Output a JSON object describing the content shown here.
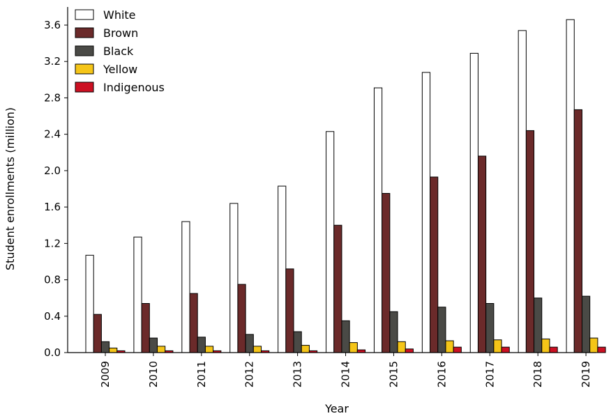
{
  "chart_data": {
    "type": "bar",
    "title": "",
    "xlabel": "Year",
    "ylabel": "Student enrollments (million)",
    "ylim": [
      0,
      3.8
    ],
    "yticks": [
      "0.0",
      "0.4",
      "0.8",
      "1.2",
      "1.6",
      "2.0",
      "2.4",
      "2.8",
      "3.2",
      "3.6"
    ],
    "categories": [
      "2009",
      "2010",
      "2011",
      "2012",
      "2013",
      "2014",
      "2015",
      "2016",
      "2017",
      "2018",
      "2019"
    ],
    "grid": false,
    "legend_position": "top-left",
    "series": [
      {
        "name": "White",
        "color": "#ffffff",
        "values": [
          1.07,
          1.27,
          1.44,
          1.64,
          1.83,
          2.43,
          2.91,
          3.08,
          3.29,
          3.54,
          3.66
        ]
      },
      {
        "name": "Brown",
        "color": "#6b2a2a",
        "values": [
          0.42,
          0.54,
          0.65,
          0.75,
          0.92,
          1.4,
          1.75,
          1.93,
          2.16,
          2.44,
          2.67
        ]
      },
      {
        "name": "Black",
        "color": "#4a4a46",
        "values": [
          0.12,
          0.16,
          0.17,
          0.2,
          0.23,
          0.35,
          0.45,
          0.5,
          0.54,
          0.6,
          0.62
        ]
      },
      {
        "name": "Yellow",
        "color": "#f5c518",
        "values": [
          0.05,
          0.07,
          0.07,
          0.07,
          0.08,
          0.11,
          0.12,
          0.13,
          0.14,
          0.15,
          0.16
        ]
      },
      {
        "name": "Indigenous",
        "color": "#cc1022",
        "values": [
          0.02,
          0.02,
          0.02,
          0.02,
          0.02,
          0.03,
          0.04,
          0.06,
          0.06,
          0.06,
          0.06
        ]
      }
    ]
  }
}
